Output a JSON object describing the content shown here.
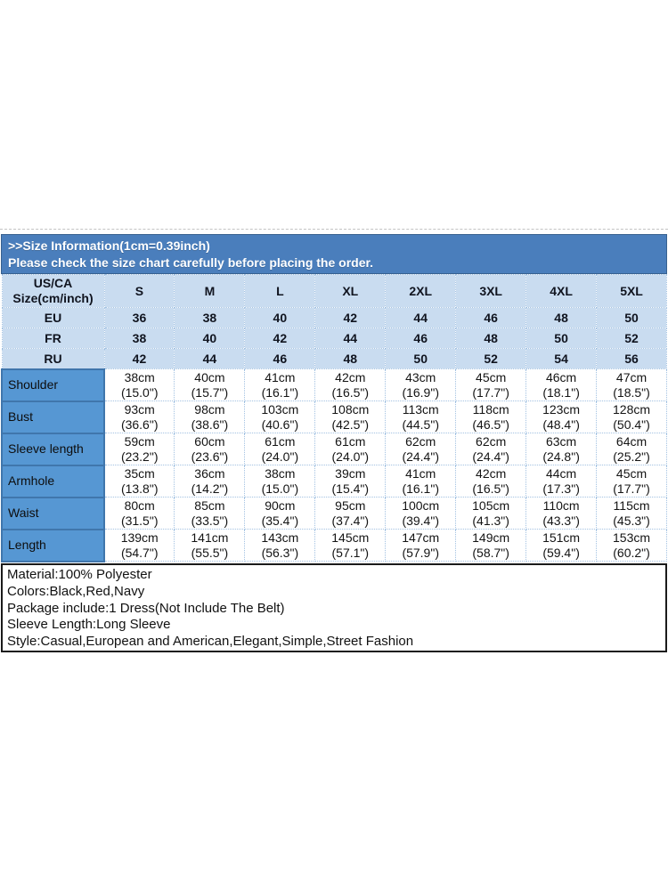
{
  "banner": {
    "title": ">>Size Information(1cm=0.39inch)",
    "subtitle": "Please check the size chart carefully before placing the order."
  },
  "size_chart": {
    "corner_label_line1": "US/CA",
    "corner_label_line2": "Size(cm/inch)",
    "sizes": [
      "S",
      "M",
      "L",
      "XL",
      "2XL",
      "3XL",
      "4XL",
      "5XL"
    ],
    "conversion_rows": [
      {
        "label": "EU",
        "values": [
          "36",
          "38",
          "40",
          "42",
          "44",
          "46",
          "48",
          "50"
        ]
      },
      {
        "label": "FR",
        "values": [
          "38",
          "40",
          "42",
          "44",
          "46",
          "48",
          "50",
          "52"
        ]
      },
      {
        "label": "RU",
        "values": [
          "42",
          "44",
          "46",
          "48",
          "50",
          "52",
          "54",
          "56"
        ]
      }
    ],
    "measurement_rows": [
      {
        "label": "Shoulder",
        "cells": [
          {
            "cm": "38cm",
            "in": "(15.0\")"
          },
          {
            "cm": "40cm",
            "in": "(15.7\")"
          },
          {
            "cm": "41cm",
            "in": "(16.1\")"
          },
          {
            "cm": "42cm",
            "in": "(16.5\")"
          },
          {
            "cm": "43cm",
            "in": "(16.9\")"
          },
          {
            "cm": "45cm",
            "in": "(17.7\")"
          },
          {
            "cm": "46cm",
            "in": "(18.1\")"
          },
          {
            "cm": "47cm",
            "in": "(18.5\")"
          }
        ]
      },
      {
        "label": "Bust",
        "cells": [
          {
            "cm": "93cm",
            "in": "(36.6\")"
          },
          {
            "cm": "98cm",
            "in": "(38.6\")"
          },
          {
            "cm": "103cm",
            "in": "(40.6\")"
          },
          {
            "cm": "108cm",
            "in": "(42.5\")"
          },
          {
            "cm": "113cm",
            "in": "(44.5\")"
          },
          {
            "cm": "118cm",
            "in": "(46.5\")"
          },
          {
            "cm": "123cm",
            "in": "(48.4\")"
          },
          {
            "cm": "128cm",
            "in": "(50.4\")"
          }
        ]
      },
      {
        "label": "Sleeve length",
        "cells": [
          {
            "cm": "59cm",
            "in": "(23.2\")"
          },
          {
            "cm": "60cm",
            "in": "(23.6\")"
          },
          {
            "cm": "61cm",
            "in": "(24.0\")"
          },
          {
            "cm": "61cm",
            "in": "(24.0\")"
          },
          {
            "cm": "62cm",
            "in": "(24.4\")"
          },
          {
            "cm": "62cm",
            "in": "(24.4\")"
          },
          {
            "cm": "63cm",
            "in": "(24.8\")"
          },
          {
            "cm": "64cm",
            "in": "(25.2\")"
          }
        ]
      },
      {
        "label": "Armhole",
        "cells": [
          {
            "cm": "35cm",
            "in": "(13.8\")"
          },
          {
            "cm": "36cm",
            "in": "(14.2\")"
          },
          {
            "cm": "38cm",
            "in": "(15.0\")"
          },
          {
            "cm": "39cm",
            "in": "(15.4\")"
          },
          {
            "cm": "41cm",
            "in": "(16.1\")"
          },
          {
            "cm": "42cm",
            "in": "(16.5\")"
          },
          {
            "cm": "44cm",
            "in": "(17.3\")"
          },
          {
            "cm": "45cm",
            "in": "(17.7\")"
          }
        ]
      },
      {
        "label": "Waist",
        "cells": [
          {
            "cm": "80cm",
            "in": "(31.5\")"
          },
          {
            "cm": "85cm",
            "in": "(33.5\")"
          },
          {
            "cm": "90cm",
            "in": "(35.4\")"
          },
          {
            "cm": "95cm",
            "in": "(37.4\")"
          },
          {
            "cm": "100cm",
            "in": "(39.4\")"
          },
          {
            "cm": "105cm",
            "in": "(41.3\")"
          },
          {
            "cm": "110cm",
            "in": "(43.3\")"
          },
          {
            "cm": "115cm",
            "in": "(45.3\")"
          }
        ]
      },
      {
        "label": "Length",
        "cells": [
          {
            "cm": "139cm",
            "in": "(54.7\")"
          },
          {
            "cm": "141cm",
            "in": "(55.5\")"
          },
          {
            "cm": "143cm",
            "in": "(56.3\")"
          },
          {
            "cm": "145cm",
            "in": "(57.1\")"
          },
          {
            "cm": "147cm",
            "in": "(57.9\")"
          },
          {
            "cm": "149cm",
            "in": "(58.7\")"
          },
          {
            "cm": "151cm",
            "in": "(59.4\")"
          },
          {
            "cm": "153cm",
            "in": "(60.2\")"
          }
        ]
      }
    ]
  },
  "product_info": {
    "lines": [
      "Material:100% Polyester",
      "Colors:Black,Red,Navy",
      "Package include:1 Dress(Not Include The Belt)",
      "Sleeve Length:Long Sleeve",
      "Style:Casual,European and American,Elegant,Simple,Street Fashion"
    ]
  },
  "colors": {
    "banner_blue": "#4a7ebc",
    "banner_edge": "#38618f",
    "light_blue": "#c9dcf0",
    "label_blue": "#5697d3",
    "label_edge": "#4076ac",
    "grid_blue": "#a3c2e2"
  }
}
